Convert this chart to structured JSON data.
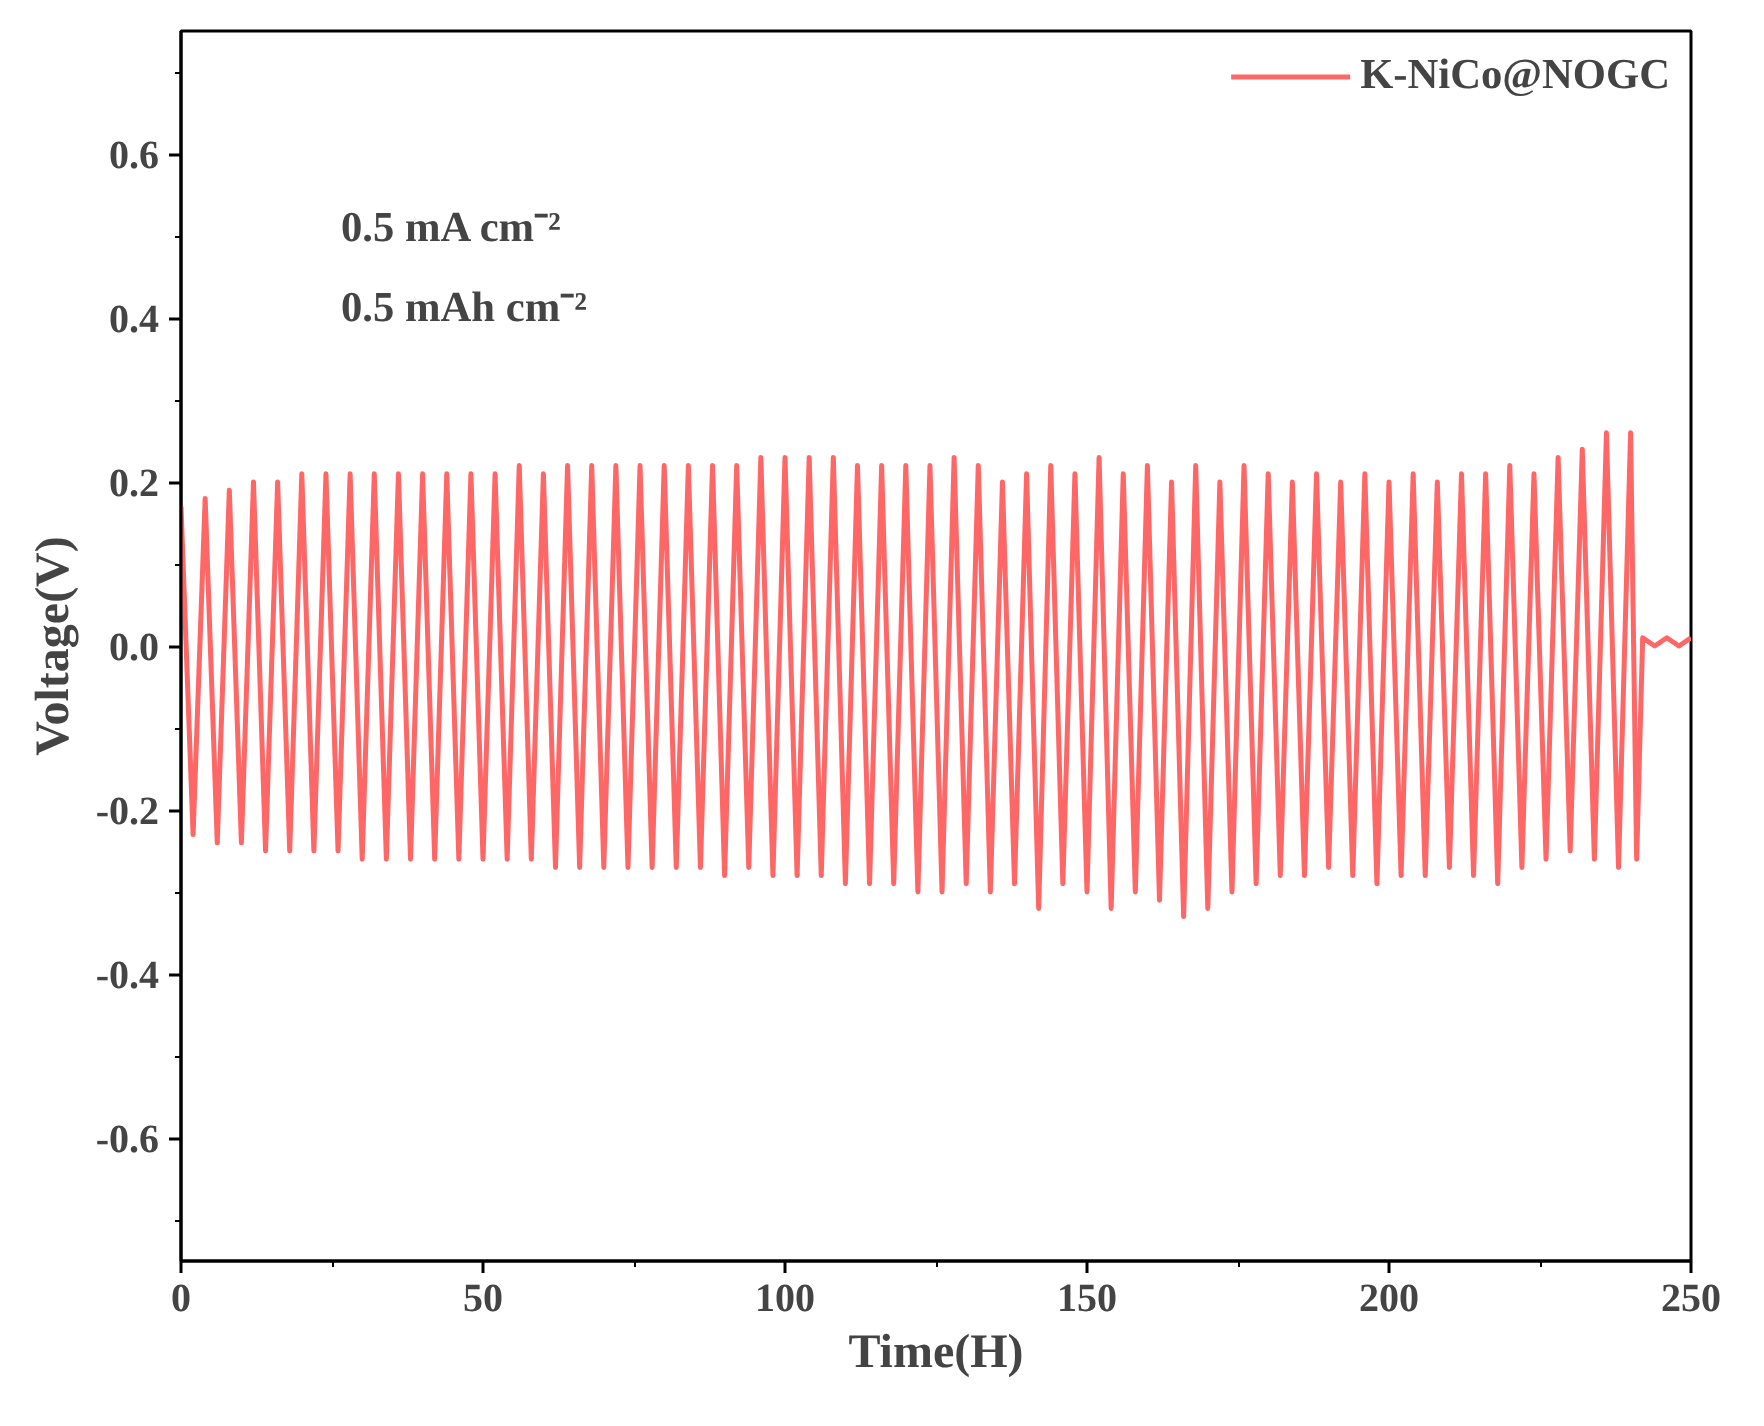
{
  "chart_data": {
    "type": "line",
    "xlabel": "Time(H)",
    "ylabel": "Voltage(V)",
    "annotations": [
      "0.5 mA cm⁻²",
      "0.5 mAh cm⁻²"
    ],
    "x": [
      0,
      2,
      4,
      6,
      8,
      10,
      12,
      14,
      16,
      18,
      20,
      22,
      24,
      26,
      28,
      30,
      32,
      34,
      36,
      38,
      40,
      42,
      44,
      46,
      48,
      50,
      52,
      54,
      56,
      58,
      60,
      62,
      64,
      66,
      68,
      70,
      72,
      74,
      76,
      78,
      80,
      82,
      84,
      86,
      88,
      90,
      92,
      94,
      96,
      98,
      100,
      102,
      104,
      106,
      108,
      110,
      112,
      114,
      116,
      118,
      120,
      122,
      124,
      126,
      128,
      130,
      132,
      134,
      136,
      138,
      140,
      142,
      144,
      146,
      148,
      150,
      152,
      154,
      156,
      158,
      160,
      162,
      164,
      166,
      168,
      170,
      172,
      174,
      176,
      178,
      180,
      182,
      184,
      186,
      188,
      190,
      192,
      194,
      196,
      198,
      200,
      202,
      204,
      206,
      208,
      210,
      212,
      214,
      216,
      218,
      220,
      222,
      224,
      226,
      228,
      230,
      232,
      234,
      236,
      238,
      240,
      241,
      242,
      244,
      246,
      248,
      250
    ],
    "series": [
      {
        "name": "K-NiCo@NOGC",
        "color": "#ff6666",
        "values": [
          0.17,
          -0.23,
          0.18,
          -0.24,
          0.19,
          -0.24,
          0.2,
          -0.25,
          0.2,
          -0.25,
          0.21,
          -0.25,
          0.21,
          -0.25,
          0.21,
          -0.26,
          0.21,
          -0.26,
          0.21,
          -0.26,
          0.21,
          -0.26,
          0.21,
          -0.26,
          0.21,
          -0.26,
          0.21,
          -0.26,
          0.22,
          -0.26,
          0.21,
          -0.27,
          0.22,
          -0.27,
          0.22,
          -0.27,
          0.22,
          -0.27,
          0.22,
          -0.27,
          0.22,
          -0.27,
          0.22,
          -0.27,
          0.22,
          -0.28,
          0.22,
          -0.27,
          0.23,
          -0.28,
          0.23,
          -0.28,
          0.23,
          -0.28,
          0.23,
          -0.29,
          0.22,
          -0.29,
          0.22,
          -0.29,
          0.22,
          -0.3,
          0.22,
          -0.3,
          0.23,
          -0.29,
          0.22,
          -0.3,
          0.2,
          -0.29,
          0.21,
          -0.32,
          0.22,
          -0.29,
          0.21,
          -0.3,
          0.23,
          -0.32,
          0.21,
          -0.3,
          0.22,
          -0.31,
          0.2,
          -0.33,
          0.22,
          -0.32,
          0.2,
          -0.3,
          0.22,
          -0.29,
          0.21,
          -0.28,
          0.2,
          -0.28,
          0.21,
          -0.27,
          0.2,
          -0.28,
          0.21,
          -0.29,
          0.2,
          -0.28,
          0.21,
          -0.28,
          0.2,
          -0.27,
          0.21,
          -0.28,
          0.21,
          -0.29,
          0.22,
          -0.27,
          0.21,
          -0.26,
          0.23,
          -0.25,
          0.24,
          -0.26,
          0.26,
          -0.27,
          0.26,
          -0.26,
          0.01,
          0.0,
          0.01,
          0.0,
          0.01
        ]
      }
    ],
    "xlim": [
      0,
      250
    ],
    "xticks": [
      0,
      50,
      100,
      150,
      200,
      250
    ],
    "ylim": [
      -0.75,
      0.75
    ],
    "yticks": [
      -0.6,
      -0.4,
      -0.2,
      {
        "value": 0,
        "label": "0.0"
      },
      0.2,
      0.4,
      0.6
    ],
    "legend": "top right",
    "grid": false,
    "line_style": "solid"
  }
}
